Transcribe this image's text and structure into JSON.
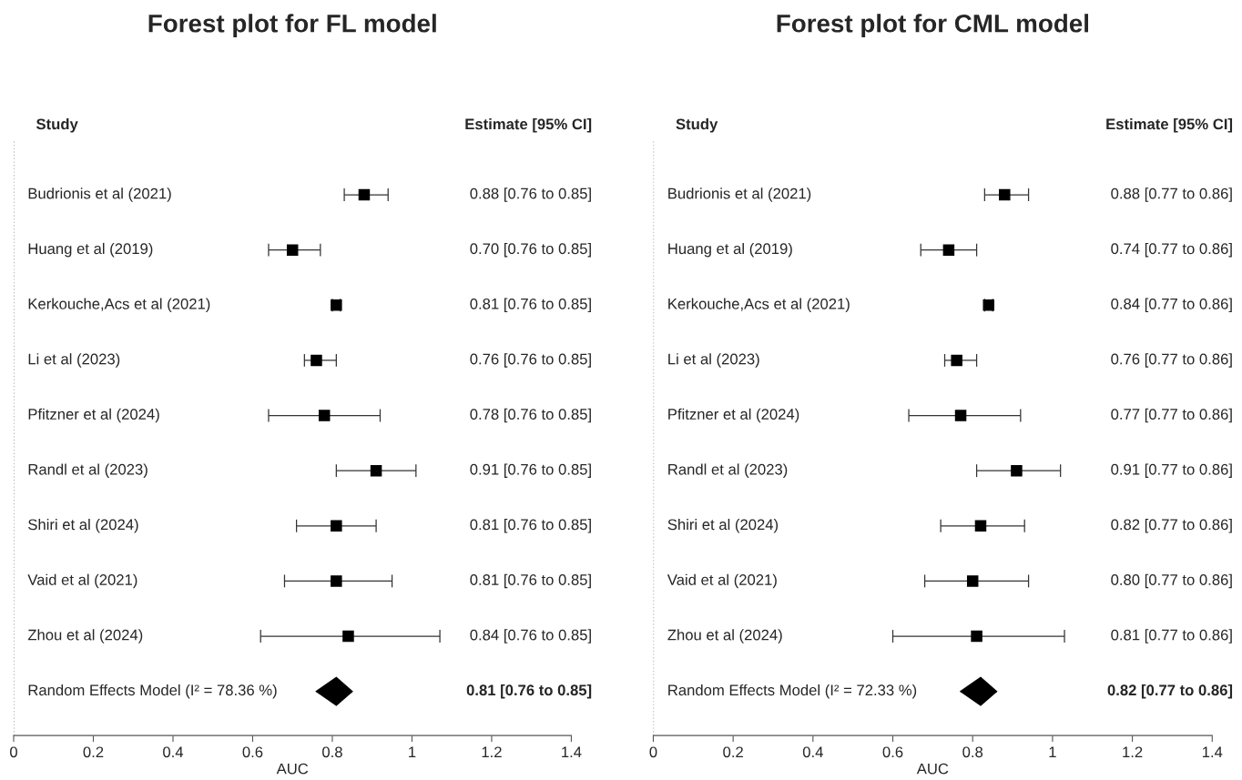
{
  "chart_data": [
    {
      "type": "scatter",
      "orientation": "horizontal",
      "title": "Forest plot for FL model",
      "xlabel": "AUC",
      "categories": [
        "Budrionis et al (2021)",
        "Huang et al (2019)",
        "Kerkouche,Acs et al (2021)",
        "Li et al (2023)",
        "Pfitzner et al (2024)",
        "Randl et al (2023)",
        "Shiri et al (2024)",
        "Vaid et al (2021)",
        "Zhou et al (2024)",
        "Random Effects Model (I² = 78.36 %)"
      ],
      "series": [
        {
          "color": "#000000",
          "marker": "square",
          "values": [
            0.88,
            0.7,
            0.81,
            0.76,
            0.78,
            0.91,
            0.81,
            0.81,
            0.84,
            null
          ],
          "errors": [
            [
              0.83,
              0.94
            ],
            [
              0.64,
              0.77
            ],
            [
              0.8,
              0.82
            ],
            [
              0.73,
              0.81
            ],
            [
              0.64,
              0.92
            ],
            [
              0.81,
              1.01
            ],
            [
              0.71,
              0.91
            ],
            [
              0.68,
              0.95
            ],
            [
              0.62,
              1.07
            ],
            null
          ]
        },
        {
          "color": "#000000",
          "marker": "diamond",
          "values": [
            null,
            null,
            null,
            null,
            null,
            null,
            null,
            null,
            null,
            0.81
          ],
          "errors": [
            null,
            null,
            null,
            null,
            null,
            null,
            null,
            null,
            null,
            [
              0.76,
              0.85
            ]
          ]
        }
      ],
      "xlim": [
        0,
        1.4
      ],
      "xticks": [
        0,
        0.2,
        0.4,
        0.6,
        0.8,
        1,
        1.2,
        1.4
      ],
      "ref_lines": [
        {
          "axis": "x",
          "value": 0,
          "color": "#999999",
          "line_style": "dotted"
        }
      ],
      "annotations": [
        "Study",
        "Estimate [95% CI]",
        "0.88 [0.76 to 0.85]",
        "0.70 [0.76 to 0.85]",
        "0.81 [0.76 to 0.85]",
        "0.76 [0.76 to 0.85]",
        "0.78 [0.76 to 0.85]",
        "0.91 [0.76 to 0.85]",
        "0.81 [0.76 to 0.85]",
        "0.81 [0.76 to 0.85]",
        "0.84 [0.76 to 0.85]",
        "0.81 [0.76 to 0.85]"
      ],
      "grid": false,
      "legend": false
    },
    {
      "type": "scatter",
      "orientation": "horizontal",
      "title": "Forest plot for CML model",
      "xlabel": "AUC",
      "categories": [
        "Budrionis et al (2021)",
        "Huang et al (2019)",
        "Kerkouche,Acs et al (2021)",
        "Li et al (2023)",
        "Pfitzner et al (2024)",
        "Randl et al (2023)",
        "Shiri et al (2024)",
        "Vaid et al (2021)",
        "Zhou et al (2024)",
        "Random Effects Model (I² = 72.33 %)"
      ],
      "series": [
        {
          "color": "#000000",
          "marker": "square",
          "values": [
            0.88,
            0.74,
            0.84,
            0.76,
            0.77,
            0.91,
            0.82,
            0.8,
            0.81,
            null
          ],
          "errors": [
            [
              0.83,
              0.94
            ],
            [
              0.67,
              0.81
            ],
            [
              0.83,
              0.85
            ],
            [
              0.73,
              0.81
            ],
            [
              0.64,
              0.92
            ],
            [
              0.81,
              1.02
            ],
            [
              0.72,
              0.93
            ],
            [
              0.68,
              0.94
            ],
            [
              0.6,
              1.03
            ],
            null
          ]
        },
        {
          "color": "#000000",
          "marker": "diamond",
          "values": [
            null,
            null,
            null,
            null,
            null,
            null,
            null,
            null,
            null,
            0.82
          ],
          "errors": [
            null,
            null,
            null,
            null,
            null,
            null,
            null,
            null,
            null,
            [
              0.77,
              0.86
            ]
          ]
        }
      ],
      "xlim": [
        0,
        1.4
      ],
      "xticks": [
        0,
        0.2,
        0.4,
        0.6,
        0.8,
        1,
        1.2,
        1.4
      ],
      "ref_lines": [
        {
          "axis": "x",
          "value": 0,
          "color": "#999999",
          "line_style": "dotted"
        }
      ],
      "annotations": [
        "Study",
        "Estimate [95% CI]",
        "0.88 [0.77 to 0.86]",
        "0.74 [0.77 to 0.86]",
        "0.84 [0.77 to 0.86]",
        "0.76 [0.77 to 0.86]",
        "0.77 [0.77 to 0.86]",
        "0.91 [0.77 to 0.86]",
        "0.82 [0.77 to 0.86]",
        "0.80 [0.77 to 0.86]",
        "0.81 [0.77 to 0.86]",
        "0.82 [0.77 to 0.86]"
      ],
      "grid": false,
      "legend": false
    }
  ]
}
